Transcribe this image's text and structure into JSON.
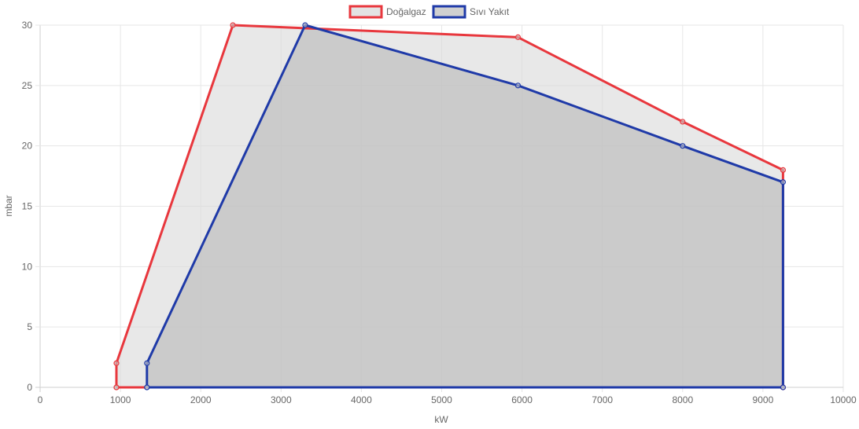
{
  "chart_data": {
    "type": "area",
    "xlabel": "kW",
    "ylabel": "mbar",
    "xlim": [
      0,
      10000
    ],
    "ylim": [
      0,
      30
    ],
    "xticks": [
      "0",
      "1000",
      "2000",
      "3000",
      "4000",
      "5000",
      "6000",
      "7000",
      "8000",
      "9000",
      "10000"
    ],
    "yticks": [
      "0",
      "5",
      "10",
      "15",
      "20",
      "25",
      "30"
    ],
    "grid": true,
    "legend_position": "top",
    "series": [
      {
        "name": "Doğalgaz",
        "color": "#e8373d",
        "fill": "#dcdcdc",
        "points": [
          {
            "x": 950,
            "y": 0
          },
          {
            "x": 950,
            "y": 2
          },
          {
            "x": 2400,
            "y": 30
          },
          {
            "x": 5950,
            "y": 29
          },
          {
            "x": 8000,
            "y": 22
          },
          {
            "x": 9250,
            "y": 18
          },
          {
            "x": 9250,
            "y": 0
          },
          {
            "x": 950,
            "y": 0
          }
        ]
      },
      {
        "name": "Sıvı Yakıt",
        "color": "#1f3aa8",
        "fill": "#bcbcbc",
        "points": [
          {
            "x": 1330,
            "y": 0
          },
          {
            "x": 1330,
            "y": 2
          },
          {
            "x": 3300,
            "y": 30
          },
          {
            "x": 5950,
            "y": 25
          },
          {
            "x": 8000,
            "y": 20
          },
          {
            "x": 9250,
            "y": 17
          },
          {
            "x": 9250,
            "y": 0
          },
          {
            "x": 1330,
            "y": 0
          }
        ]
      }
    ]
  }
}
